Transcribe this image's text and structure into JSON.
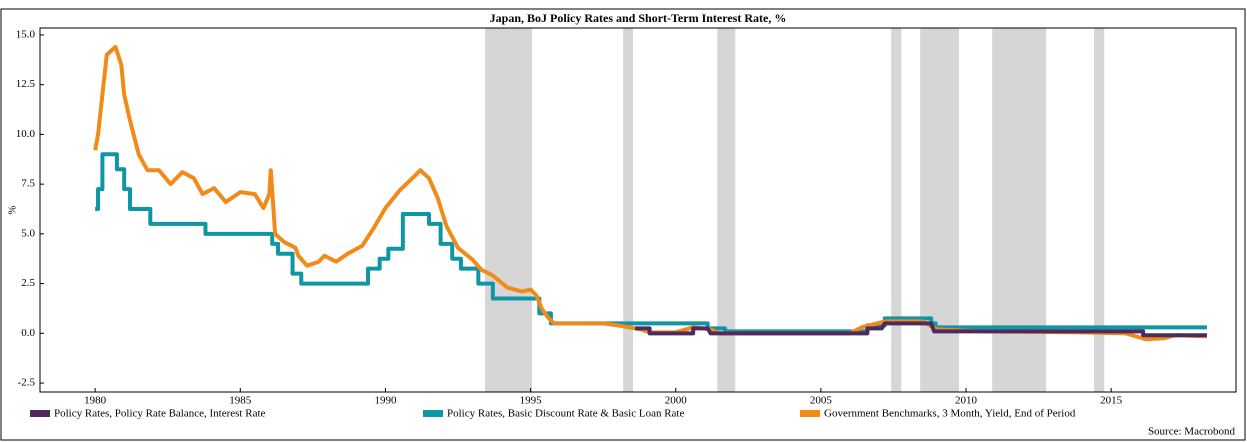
{
  "chart_data": {
    "type": "line",
    "title": "Japan, BoJ Policy Rates and Short-Term Interest Rate, %",
    "y_label": "%",
    "source": "Source: Macrobond",
    "xlim": [
      1978.1,
      2019.3
    ],
    "xticks": [
      1980,
      1985,
      1990,
      1995,
      2000,
      2005,
      2010,
      2015
    ],
    "ylim": [
      -2.95,
      15.35
    ],
    "yticks": [
      -2.5,
      {
        "value": 0,
        "label": "0.0"
      },
      2.5,
      {
        "value": 5,
        "label": "5.0"
      },
      7.5,
      {
        "value": 10,
        "label": "10.0"
      },
      12.5,
      {
        "value": 15,
        "label": "15.0"
      }
    ],
    "grid": false,
    "shade_color": "#d6d6d6",
    "shaded_periods": [
      [
        1993.43,
        1995.05
      ],
      [
        1998.19,
        1998.53
      ],
      [
        2001.43,
        2002.05
      ],
      [
        2007.42,
        2007.77
      ],
      [
        2008.42,
        2009.76
      ],
      [
        2010.9,
        2012.76
      ],
      [
        2014.41,
        2014.76
      ]
    ],
    "series": [
      {
        "name": "Policy Rates, Policy Rate Balance, Interest Rate",
        "color": "#4e2a5e",
        "x": [
          1998.6,
          1999.1,
          1999.1,
          2000.6,
          2000.6,
          2001.1,
          2001.2,
          2006.6,
          2006.6,
          2007.1,
          2007.2,
          2008.8,
          2008.9,
          2016.1,
          2016.1,
          2018.3
        ],
        "values": [
          0.25,
          0.25,
          0,
          0,
          0.25,
          0.25,
          0,
          0,
          0.25,
          0.25,
          0.5,
          0.5,
          0.1,
          0.1,
          -0.1,
          -0.1
        ]
      },
      {
        "name": "Policy Rates, Basic Discount Rate & Basic Loan Rate",
        "color": "#0f96a4",
        "x": [
          1980.0,
          1980.1,
          1980.1,
          1980.25,
          1980.25,
          1980.75,
          1980.75,
          1981.0,
          1981.0,
          1981.2,
          1981.2,
          1981.9,
          1981.9,
          1983.8,
          1983.8,
          1986.1,
          1986.1,
          1986.3,
          1986.3,
          1986.8,
          1986.8,
          1987.1,
          1987.1,
          1989.4,
          1989.4,
          1989.8,
          1989.8,
          1990.1,
          1990.1,
          1990.6,
          1990.6,
          1991.5,
          1991.5,
          1991.9,
          1991.9,
          1992.3,
          1992.3,
          1992.6,
          1992.6,
          1993.2,
          1993.2,
          1993.7,
          1993.7,
          1995.3,
          1995.3,
          1995.7,
          1995.7,
          2001.1,
          2001.1,
          2001.7,
          2001.7,
          2006.6,
          2006.6,
          2007.2,
          2007.2,
          2008.8,
          2008.8,
          2008.95,
          2008.95,
          2018.3
        ],
        "values": [
          6.25,
          6.25,
          7.25,
          7.25,
          9,
          9,
          8.25,
          8.25,
          7.25,
          7.25,
          6.25,
          6.25,
          5.5,
          5.5,
          5,
          5,
          4.5,
          4.5,
          4,
          4,
          3,
          3,
          2.5,
          2.5,
          3.25,
          3.25,
          3.75,
          3.75,
          4.25,
          4.25,
          6,
          6,
          5.5,
          5.5,
          4.5,
          4.5,
          3.75,
          3.75,
          3.25,
          3.25,
          2.5,
          2.5,
          1.75,
          1.75,
          1,
          1,
          0.5,
          0.5,
          0.25,
          0.25,
          0.1,
          0.1,
          0.4,
          0.4,
          0.75,
          0.75,
          0.5,
          0.5,
          0.3,
          0.3
        ]
      },
      {
        "name": "Government Benchmarks, 3 Month, Yield, End of Period",
        "color": "#f28a1a",
        "x": [
          1980.0,
          1980.1,
          1980.25,
          1980.4,
          1980.7,
          1980.9,
          1981.0,
          1981.2,
          1981.5,
          1981.8,
          1982.2,
          1982.6,
          1983.0,
          1983.4,
          1983.7,
          1984.1,
          1984.5,
          1985.0,
          1985.5,
          1985.8,
          1986.0,
          1986.05,
          1986.2,
          1986.5,
          1986.9,
          1987.0,
          1987.3,
          1987.7,
          1987.9,
          1988.3,
          1988.7,
          1989.2,
          1989.6,
          1990.0,
          1990.5,
          1991.0,
          1991.2,
          1991.5,
          1991.8,
          1992.1,
          1992.5,
          1993.0,
          1993.3,
          1993.7,
          1994.2,
          1994.7,
          1995.0,
          1995.2,
          1995.4,
          1995.6,
          1995.8,
          1997.5,
          1998.0,
          1998.8,
          1999.1,
          2000.0,
          2000.6,
          2001.2,
          2001.5,
          2006.0,
          2006.4,
          2007.2,
          2008.5,
          2009.0,
          2010.5,
          2014.0,
          2015.5,
          2016.2,
          2016.8,
          2017.2,
          2018.3
        ],
        "values": [
          9.2,
          10,
          12,
          14,
          14.4,
          13.5,
          12,
          10.7,
          9,
          8.2,
          8.2,
          7.5,
          8.1,
          7.8,
          7,
          7.3,
          6.6,
          7.1,
          7,
          6.3,
          7,
          8.2,
          5,
          4.6,
          4.3,
          3.9,
          3.4,
          3.6,
          3.9,
          3.6,
          4,
          4.4,
          5.3,
          6.3,
          7.2,
          7.9,
          8.2,
          7.8,
          6.8,
          5.4,
          4.3,
          3.7,
          3.2,
          2.9,
          2.3,
          2.1,
          2.2,
          1.9,
          1.2,
          0.8,
          0.5,
          0.5,
          0.4,
          0.2,
          0.05,
          0.05,
          0.3,
          0.2,
          0,
          0,
          0.3,
          0.6,
          0.6,
          0.2,
          0.1,
          0.05,
          0,
          -0.3,
          -0.25,
          -0.1,
          -0.15
        ]
      }
    ]
  }
}
